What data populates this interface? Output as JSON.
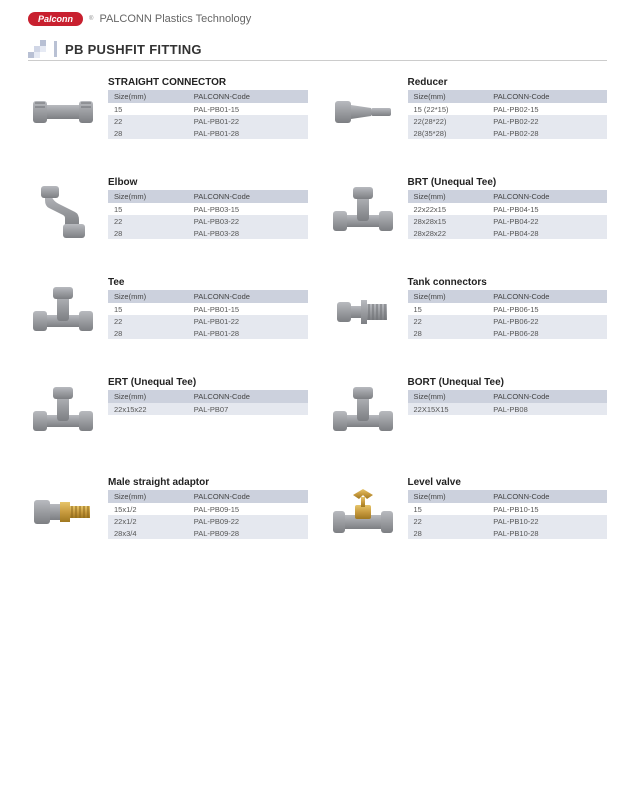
{
  "header": {
    "logo_text": "Palconn",
    "brand_text": "PALCONN Plastics Technology"
  },
  "section_title": "PB PUSHFIT FITTING",
  "table_headers": {
    "size": "Size(mm)",
    "code": "PALCONN-Code"
  },
  "colors": {
    "logo_bg": "#c8202f",
    "header_row": "#ccd1dd",
    "row_alt": "#e5e8ef",
    "fitting_grey": "#9a9ca0",
    "fitting_grey_dark": "#7d7f83",
    "brass": "#c89b3f",
    "brass_dark": "#a07820"
  },
  "products": [
    {
      "title": "STRAIGHT CONNECTOR",
      "shape": "straight",
      "rows": [
        {
          "size": "15",
          "code": "PAL-PB01-15"
        },
        {
          "size": "22",
          "code": "PAL-PB01-22"
        },
        {
          "size": "28",
          "code": "PAL-PB01-28"
        }
      ]
    },
    {
      "title": "Reducer",
      "shape": "reducer",
      "rows": [
        {
          "size": "15 (22*15)",
          "code": "PAL-PB02-15"
        },
        {
          "size": "22(28*22)",
          "code": "PAL-PB02-22"
        },
        {
          "size": "28(35*28)",
          "code": "PAL-PB02-28"
        }
      ]
    },
    {
      "title": "Elbow",
      "shape": "elbow",
      "rows": [
        {
          "size": "15",
          "code": "PAL-PB03-15"
        },
        {
          "size": "22",
          "code": "PAL-PB03-22"
        },
        {
          "size": "28",
          "code": "PAL-PB03-28"
        }
      ]
    },
    {
      "title": "BRT (Unequal Tee)",
      "shape": "tee",
      "rows": [
        {
          "size": "22x22x15",
          "code": "PAL-PB04-15"
        },
        {
          "size": "28x28x15",
          "code": "PAL-PB04-22"
        },
        {
          "size": "28x28x22",
          "code": "PAL-PB04-28"
        }
      ]
    },
    {
      "title": "Tee",
      "shape": "tee",
      "rows": [
        {
          "size": "15",
          "code": "PAL-PB01-15"
        },
        {
          "size": "22",
          "code": "PAL-PB01-22"
        },
        {
          "size": "28",
          "code": "PAL-PB01-28"
        }
      ]
    },
    {
      "title": "Tank connectors",
      "shape": "tank",
      "rows": [
        {
          "size": "15",
          "code": "PAL-PB06-15"
        },
        {
          "size": "22",
          "code": "PAL-PB06-22"
        },
        {
          "size": "28",
          "code": "PAL-PB06-28"
        }
      ]
    },
    {
      "title": "ERT (Unequal Tee)",
      "shape": "tee",
      "rows": [
        {
          "size": "22x15x22",
          "code": "PAL-PB07"
        }
      ]
    },
    {
      "title": "BORT (Unequal Tee)",
      "shape": "tee",
      "rows": [
        {
          "size": "22X15X15",
          "code": "PAL-PB08"
        }
      ]
    },
    {
      "title": "Male straight adaptor",
      "shape": "male_adaptor",
      "rows": [
        {
          "size": "15x1/2",
          "code": "PAL-PB09-15"
        },
        {
          "size": "22x1/2",
          "code": "PAL-PB09-22"
        },
        {
          "size": "28x3/4",
          "code": "PAL-PB09-28"
        }
      ]
    },
    {
      "title": "Level valve",
      "shape": "valve",
      "rows": [
        {
          "size": "15",
          "code": "PAL-PB10-15"
        },
        {
          "size": "22",
          "code": "PAL-PB10-22"
        },
        {
          "size": "28",
          "code": "PAL-PB10-28"
        }
      ]
    }
  ]
}
